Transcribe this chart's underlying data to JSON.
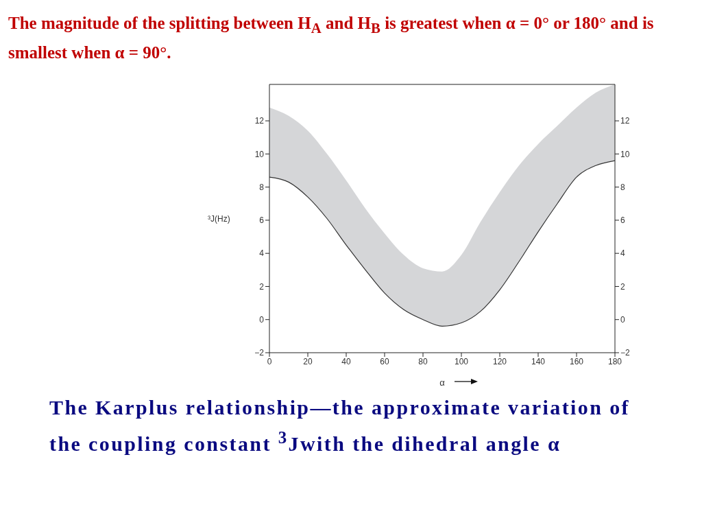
{
  "chart_data": {
    "type": "line",
    "title": "The magnitude of the splitting between H$_{A}$ and H$_{B}$ is greatest when α = 0° or 180° and is smallest when α = 90°.",
    "annotations": [
      "The Karplus relationship—the approximate variation of the coupling constant $^{3}$Jwith the dihedral angle α"
    ],
    "xlabel": "α",
    "ylabel": "³J(Hz)",
    "x": [
      0,
      10,
      20,
      30,
      40,
      50,
      60,
      70,
      80,
      90,
      100,
      110,
      120,
      130,
      140,
      150,
      160,
      170,
      180
    ],
    "series": [
      {
        "color": "#333333",
        "values": [
          8.6,
          8.3,
          7.4,
          6.1,
          4.5,
          3.0,
          1.6,
          0.6,
          0.0,
          -0.4,
          -0.2,
          0.5,
          1.8,
          3.5,
          5.3,
          7.0,
          8.6,
          9.3,
          9.6
        ],
        "lower": [
          8.6,
          8.3,
          7.4,
          6.1,
          4.5,
          3.0,
          1.6,
          0.6,
          0.0,
          -0.4,
          -0.2,
          0.5,
          1.8,
          3.5,
          5.3,
          7.0,
          8.6,
          9.3,
          9.6
        ],
        "upper": [
          12.8,
          12.3,
          11.4,
          10.0,
          8.4,
          6.7,
          5.2,
          3.9,
          3.1,
          2.9,
          3.9,
          5.9,
          7.7,
          9.3,
          10.6,
          11.7,
          12.8,
          13.7,
          14.2
        ]
      }
    ],
    "xlim": [
      0,
      180
    ],
    "xticks": [
      0,
      20,
      40,
      60,
      80,
      100,
      120,
      140,
      160,
      180
    ],
    "ylim": [
      -2,
      14.2
    ],
    "yticks": [
      -2,
      0,
      2,
      4,
      6,
      8,
      10,
      12
    ],
    "y2lim": [
      -2,
      14.2
    ],
    "y2ticks": [
      -2,
      0,
      2,
      4,
      6,
      8,
      10,
      12
    ],
    "grid": false,
    "legend": false,
    "marker": "none",
    "line_style": "solid"
  }
}
